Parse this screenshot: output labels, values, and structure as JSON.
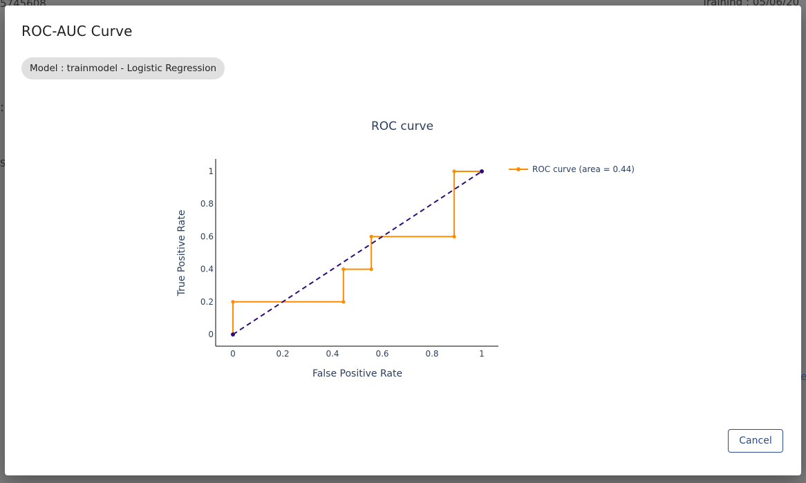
{
  "background": {
    "top_left_text": "5745608",
    "top_right_text": "Training : 05/06/20",
    "left_glyph": ":",
    "left_text2": "Sc",
    "right_glyph": "e"
  },
  "modal": {
    "title": "ROC-AUC Curve",
    "model_chip": "Model : trainmodel - Logistic Regression",
    "cancel_label": "Cancel"
  },
  "chart_data": {
    "type": "line",
    "title": "ROC curve",
    "xlabel": "False Positive Rate",
    "ylabel": "True Positive Rate",
    "xlim": [
      0,
      1
    ],
    "ylim": [
      0,
      1
    ],
    "xticks": [
      "0",
      "0.2",
      "0.4",
      "0.6",
      "0.8",
      "1"
    ],
    "yticks": [
      "0",
      "0.2",
      "0.4",
      "0.6",
      "0.8",
      "1"
    ],
    "legend_position": "top-right",
    "series": [
      {
        "name": "ROC curve (area = 0.44)",
        "color": "#ff8c00",
        "style": "solid",
        "x": [
          0,
          0,
          0.444,
          0.444,
          0.556,
          0.556,
          0.889,
          0.889,
          1
        ],
        "y": [
          0,
          0.2,
          0.2,
          0.4,
          0.4,
          0.6,
          0.6,
          1,
          1
        ]
      },
      {
        "color": "#2e0b7a",
        "style": "dashed",
        "x": [
          0,
          1
        ],
        "y": [
          0,
          1
        ]
      }
    ]
  }
}
